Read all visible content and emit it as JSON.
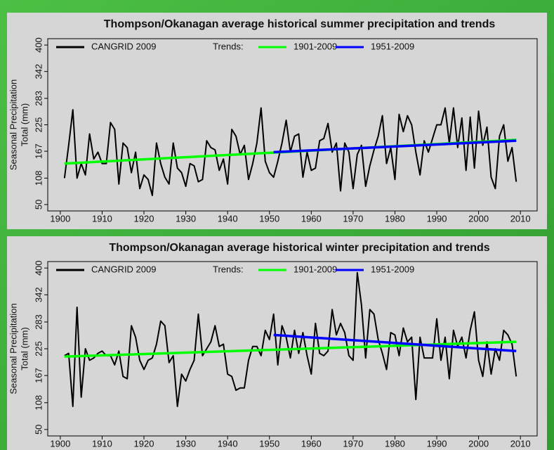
{
  "chart_data": [
    {
      "type": "line",
      "title": "Thompson/Okanagan  average historical summer precipitation and trends",
      "ylabel": [
        "Seasonal Precipitation",
        "Total (mm)"
      ],
      "legend_title": "Trends:",
      "xlim": [
        1897,
        2014
      ],
      "xticks": [
        1900,
        1910,
        1920,
        1930,
        1940,
        1950,
        1960,
        1970,
        1980,
        1990,
        2000,
        2010
      ],
      "ylim": [
        36,
        414
      ],
      "yticks": [
        50,
        108,
        167,
        225,
        283,
        342,
        400
      ],
      "x": [
        1901,
        1902,
        1903,
        1904,
        1905,
        1906,
        1907,
        1908,
        1909,
        1910,
        1911,
        1912,
        1913,
        1914,
        1915,
        1916,
        1917,
        1918,
        1919,
        1920,
        1921,
        1922,
        1923,
        1924,
        1925,
        1926,
        1927,
        1928,
        1929,
        1930,
        1931,
        1932,
        1933,
        1934,
        1935,
        1936,
        1937,
        1938,
        1939,
        1940,
        1941,
        1942,
        1943,
        1944,
        1945,
        1946,
        1947,
        1948,
        1949,
        1950,
        1951,
        1952,
        1953,
        1954,
        1955,
        1956,
        1957,
        1958,
        1959,
        1960,
        1961,
        1962,
        1963,
        1964,
        1965,
        1966,
        1967,
        1968,
        1969,
        1970,
        1971,
        1972,
        1973,
        1974,
        1975,
        1976,
        1977,
        1978,
        1979,
        1980,
        1981,
        1982,
        1983,
        1984,
        1985,
        1986,
        1987,
        1988,
        1989,
        1990,
        1991,
        1992,
        1993,
        1994,
        1995,
        1996,
        1997,
        1998,
        1999,
        2000,
        2001,
        2002,
        2003,
        2004,
        2005,
        2006,
        2007,
        2008,
        2009
      ],
      "series": [
        {
          "name": "CANGRID 2009",
          "color": "#000000",
          "values": [
            108,
            180,
            258,
            108,
            140,
            115,
            205,
            150,
            165,
            140,
            140,
            230,
            215,
            95,
            185,
            175,
            120,
            165,
            85,
            115,
            105,
            70,
            185,
            140,
            110,
            95,
            185,
            130,
            120,
            90,
            140,
            135,
            100,
            105,
            190,
            175,
            170,
            125,
            150,
            95,
            215,
            200,
            160,
            180,
            105,
            140,
            185,
            262,
            145,
            120,
            110,
            145,
            185,
            235,
            165,
            200,
            205,
            110,
            165,
            125,
            130,
            190,
            195,
            228,
            165,
            185,
            80,
            185,
            165,
            85,
            160,
            180,
            90,
            135,
            170,
            200,
            245,
            140,
            175,
            105,
            248,
            210,
            245,
            225,
            165,
            115,
            190,
            165,
            195,
            225,
            225,
            262,
            185,
            262,
            175,
            240,
            125,
            242,
            130,
            255,
            180,
            220,
            110,
            85,
            200,
            225,
            145,
            175,
            100
          ]
        },
        {
          "name": "1901-2009",
          "color": "#00ff00",
          "x": [
            1901,
            2009
          ],
          "values": [
            140,
            192
          ]
        },
        {
          "name": "1951-2009",
          "color": "#0000ff",
          "x": [
            1951,
            2009
          ],
          "values": [
            165,
            190
          ]
        }
      ]
    },
    {
      "type": "line",
      "title": "Thompson/Okanagan  average historical winter precipitation and trends",
      "ylabel": [
        "Seasonal Precipitation",
        "Total (mm)"
      ],
      "legend_title": "Trends:",
      "xlim": [
        1897,
        2014
      ],
      "xticks": [
        1900,
        1910,
        1920,
        1930,
        1940,
        1950,
        1960,
        1970,
        1980,
        1990,
        2000,
        2010
      ],
      "ylim": [
        36,
        414
      ],
      "yticks": [
        50,
        108,
        167,
        225,
        283,
        342,
        400
      ],
      "x": [
        1901,
        1902,
        1903,
        1904,
        1905,
        1906,
        1907,
        1908,
        1909,
        1910,
        1911,
        1912,
        1913,
        1914,
        1915,
        1916,
        1917,
        1918,
        1919,
        1920,
        1921,
        1922,
        1923,
        1924,
        1925,
        1926,
        1927,
        1928,
        1929,
        1930,
        1931,
        1932,
        1933,
        1934,
        1935,
        1936,
        1937,
        1938,
        1939,
        1940,
        1941,
        1942,
        1943,
        1944,
        1945,
        1946,
        1947,
        1948,
        1949,
        1950,
        1951,
        1952,
        1953,
        1954,
        1955,
        1956,
        1957,
        1958,
        1959,
        1960,
        1961,
        1962,
        1963,
        1964,
        1965,
        1966,
        1967,
        1968,
        1969,
        1970,
        1971,
        1972,
        1973,
        1974,
        1975,
        1976,
        1977,
        1978,
        1979,
        1980,
        1981,
        1982,
        1983,
        1984,
        1985,
        1986,
        1987,
        1988,
        1989,
        1990,
        1991,
        1992,
        1993,
        1994,
        1995,
        1996,
        1997,
        1998,
        1999,
        2000,
        2001,
        2002,
        2003,
        2004,
        2005,
        2006,
        2007,
        2008,
        2009
      ],
      "series": [
        {
          "name": "CANGRID 2009",
          "color": "#000000",
          "values": [
            210,
            215,
            100,
            315,
            120,
            225,
            200,
            205,
            215,
            220,
            210,
            210,
            190,
            220,
            165,
            160,
            275,
            250,
            200,
            180,
            200,
            205,
            235,
            285,
            275,
            195,
            210,
            100,
            170,
            155,
            180,
            200,
            300,
            210,
            225,
            240,
            275,
            230,
            235,
            170,
            165,
            135,
            140,
            140,
            200,
            230,
            230,
            210,
            265,
            245,
            300,
            190,
            275,
            250,
            205,
            265,
            215,
            260,
            210,
            170,
            280,
            215,
            210,
            220,
            310,
            255,
            280,
            260,
            210,
            200,
            390,
            320,
            205,
            310,
            300,
            245,
            215,
            180,
            260,
            255,
            210,
            270,
            240,
            250,
            115,
            250,
            205,
            205,
            205,
            290,
            200,
            250,
            160,
            265,
            230,
            250,
            205,
            265,
            305,
            200,
            165,
            240,
            170,
            225,
            200,
            265,
            255,
            235,
            165
          ]
        },
        {
          "name": "1901-2009",
          "color": "#00ff00",
          "x": [
            1901,
            2009
          ],
          "values": [
            208,
            240
          ]
        },
        {
          "name": "1951-2009",
          "color": "#0000ff",
          "x": [
            1951,
            2009
          ],
          "values": [
            255,
            220
          ]
        }
      ]
    }
  ]
}
